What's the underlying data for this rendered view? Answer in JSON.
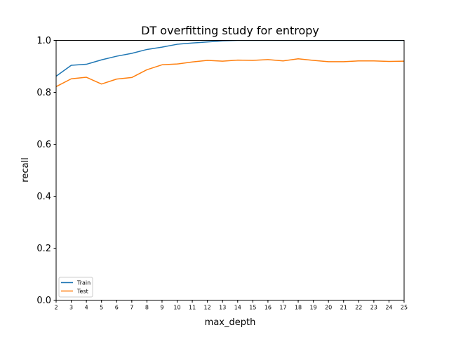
{
  "chart_data": {
    "type": "line",
    "title": "DT overfitting study for entropy",
    "xlabel": "max_depth",
    "ylabel": "recall",
    "x": [
      2,
      3,
      4,
      5,
      6,
      7,
      8,
      9,
      10,
      11,
      12,
      13,
      14,
      15,
      16,
      17,
      18,
      19,
      20,
      21,
      22,
      23,
      24,
      25
    ],
    "xlim": [
      2,
      25
    ],
    "ylim": [
      0.0,
      1.0
    ],
    "yticks": [
      0.0,
      0.2,
      0.4,
      0.6,
      0.8,
      1.0
    ],
    "ytick_labels": [
      "0.0",
      "0.2",
      "0.4",
      "0.6",
      "0.8",
      "1.0"
    ],
    "grid": false,
    "legend_position": "lower-left",
    "series": [
      {
        "name": "Train",
        "color": "#1f77b4",
        "values": [
          0.862,
          0.904,
          0.908,
          0.925,
          0.939,
          0.95,
          0.965,
          0.974,
          0.985,
          0.99,
          0.994,
          0.998,
          1.0,
          1.0,
          1.0,
          1.0,
          1.0,
          1.0,
          1.0,
          1.0,
          1.0,
          1.0,
          1.0,
          1.0
        ]
      },
      {
        "name": "Test",
        "color": "#ff7f0e",
        "values": [
          0.822,
          0.852,
          0.858,
          0.832,
          0.851,
          0.857,
          0.887,
          0.906,
          0.909,
          0.917,
          0.923,
          0.92,
          0.924,
          0.923,
          0.926,
          0.921,
          0.929,
          0.923,
          0.918,
          0.918,
          0.921,
          0.921,
          0.919,
          0.92
        ]
      }
    ]
  }
}
